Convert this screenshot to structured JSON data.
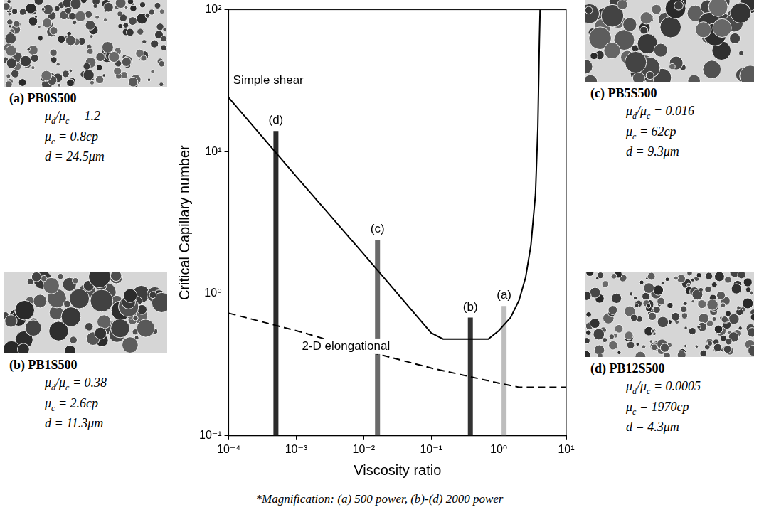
{
  "chart_data": {
    "type": "line",
    "x_label": "Viscosity ratio",
    "y_label": "Critical Capillary number",
    "log": true,
    "grid": false,
    "legend": false,
    "xlim": [
      0.0001,
      10
    ],
    "xticks": [
      {
        "value": 0.0001,
        "label": "10⁻⁴"
      },
      {
        "value": 0.001,
        "label": "10⁻³"
      },
      {
        "value": 0.01,
        "label": "10⁻²"
      },
      {
        "value": 0.1,
        "label": "10⁻¹"
      },
      {
        "value": 1,
        "label": "10⁰"
      },
      {
        "value": 10,
        "label": "10¹"
      }
    ],
    "ylim": [
      0.1,
      100
    ],
    "yticks": [
      {
        "value": 0.1,
        "label": "10⁻¹"
      },
      {
        "value": 1,
        "label": "10⁰"
      },
      {
        "value": 10,
        "label": "10¹"
      },
      {
        "value": 100,
        "label": "10²"
      }
    ],
    "series": [
      {
        "name": "Simple shear",
        "type": "line",
        "line_style": "solid",
        "color": "#000000",
        "x": [
          0.0001,
          0.001,
          0.01,
          0.1,
          0.15,
          0.3,
          0.7,
          1,
          1.5,
          2,
          2.5,
          3,
          3.5,
          3.8,
          4,
          4.1
        ],
        "values": [
          24,
          6.7,
          1.9,
          0.53,
          0.48,
          0.48,
          0.48,
          0.55,
          0.68,
          0.9,
          1.3,
          2.2,
          5,
          15,
          60,
          100
        ]
      },
      {
        "name": "2-D elongational",
        "type": "line",
        "line_style": "dashed",
        "color": "#000000",
        "x": [
          0.0001,
          0.001,
          0.01,
          0.1,
          1,
          2,
          10
        ],
        "values": [
          0.73,
          0.55,
          0.4,
          0.3,
          0.235,
          0.22,
          0.22
        ]
      },
      {
        "name": "(d)",
        "type": "bar",
        "color": "#2b2b2b",
        "x": [
          0.0005
        ],
        "values": [
          14
        ]
      },
      {
        "name": "(c)",
        "type": "bar",
        "color": "#6a6a6a",
        "x": [
          0.016
        ],
        "values": [
          2.4
        ]
      },
      {
        "name": "(b)",
        "type": "bar",
        "color": "#333333",
        "x": [
          0.38
        ],
        "values": [
          0.68
        ]
      },
      {
        "name": "(a)",
        "type": "bar",
        "color": "#bdbdbd",
        "x": [
          1.2
        ],
        "values": [
          0.82
        ]
      }
    ]
  },
  "panels": [
    {
      "label": "(a) PB0S500",
      "lines": [
        [
          {
            "t": "μ"
          },
          {
            "sub": "d"
          },
          {
            "t": "/μ"
          },
          {
            "sub": "c"
          },
          {
            "t": " = 1.2"
          }
        ],
        [
          {
            "t": "μ"
          },
          {
            "sub": "c"
          },
          {
            "t": " = 0.8cp"
          }
        ],
        [
          {
            "t": "d = 24.5μm"
          }
        ]
      ]
    },
    {
      "label": "(b) PB1S500",
      "lines": [
        [
          {
            "t": "μ"
          },
          {
            "sub": "d"
          },
          {
            "t": "/μ"
          },
          {
            "sub": "c"
          },
          {
            "t": " = 0.38"
          }
        ],
        [
          {
            "t": "μ"
          },
          {
            "sub": "c"
          },
          {
            "t": " = 2.6cp"
          }
        ],
        [
          {
            "t": "d = 11.3μm"
          }
        ]
      ]
    },
    {
      "label": "(c) PB5S500",
      "lines": [
        [
          {
            "t": "μ"
          },
          {
            "sub": "d"
          },
          {
            "t": "/μ"
          },
          {
            "sub": "c"
          },
          {
            "t": " = 0.016"
          }
        ],
        [
          {
            "t": "μ"
          },
          {
            "sub": "c"
          },
          {
            "t": " = 62cp"
          }
        ],
        [
          {
            "t": "d = 9.3μm"
          }
        ]
      ]
    },
    {
      "label": "(d) PB12S500",
      "lines": [
        [
          {
            "t": "μ"
          },
          {
            "sub": "d"
          },
          {
            "t": "/μ"
          },
          {
            "sub": "c"
          },
          {
            "t": " = 0.0005"
          }
        ],
        [
          {
            "t": "μ"
          },
          {
            "sub": "c"
          },
          {
            "t": " = 1970cp"
          }
        ],
        [
          {
            "t": "d = 4.3μm"
          }
        ]
      ]
    }
  ],
  "footnote": "*Magnification: (a) 500 power, (b)-(d) 2000 power"
}
